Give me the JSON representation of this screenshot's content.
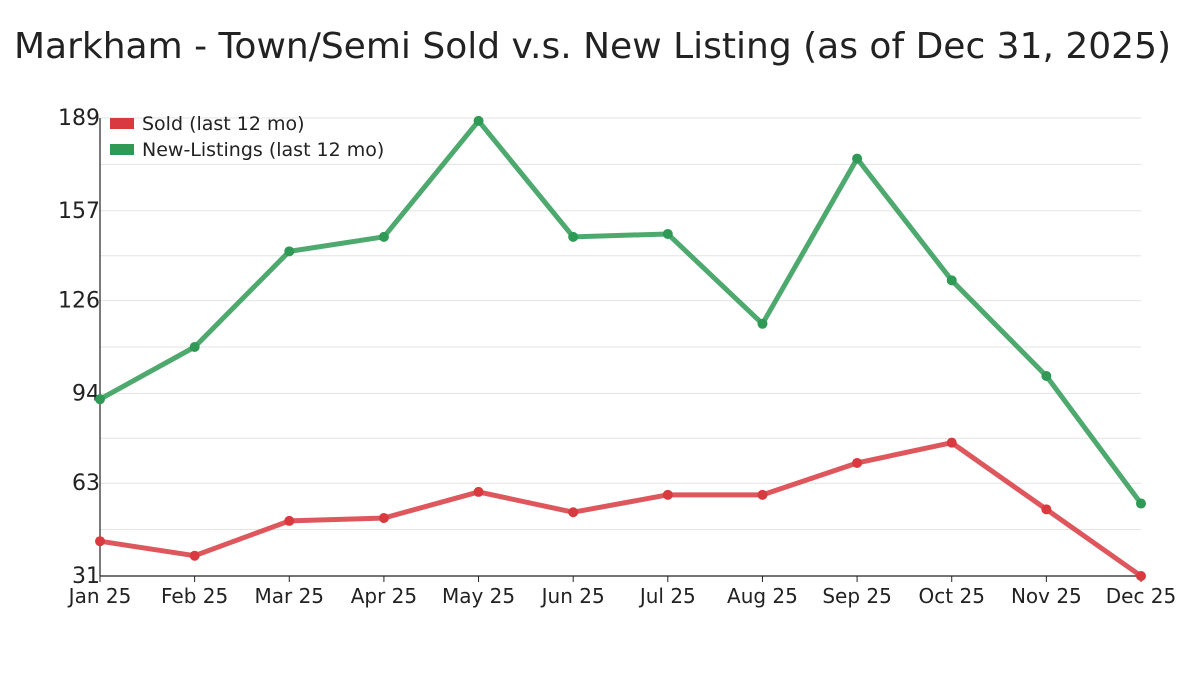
{
  "chart_data": {
    "type": "line",
    "title": "Markham - Town/Semi Sold v.s. New Listing (as of Dec 31, 2025)",
    "xlabel": "",
    "ylabel": "",
    "categories": [
      "Jan 25",
      "Feb 25",
      "Mar 25",
      "Apr 25",
      "May 25",
      "Jun 25",
      "Jul 25",
      "Aug 25",
      "Sep 25",
      "Oct 25",
      "Nov 25",
      "Dec 25"
    ],
    "y_ticks": [
      31,
      63,
      94,
      126,
      157,
      189
    ],
    "ylim": [
      31,
      189
    ],
    "grid": true,
    "legend_position": "top-left",
    "series": [
      {
        "name": "Sold (last 12 mo)",
        "color": "#d83a3f",
        "values": [
          43,
          38,
          50,
          51,
          60,
          53,
          59,
          59,
          70,
          77,
          54,
          31
        ]
      },
      {
        "name": "New-Listings (last 12 mo)",
        "color": "#2f9a55",
        "values": [
          92,
          110,
          143,
          148,
          188,
          148,
          149,
          118,
          175,
          133,
          100,
          56
        ]
      }
    ]
  }
}
